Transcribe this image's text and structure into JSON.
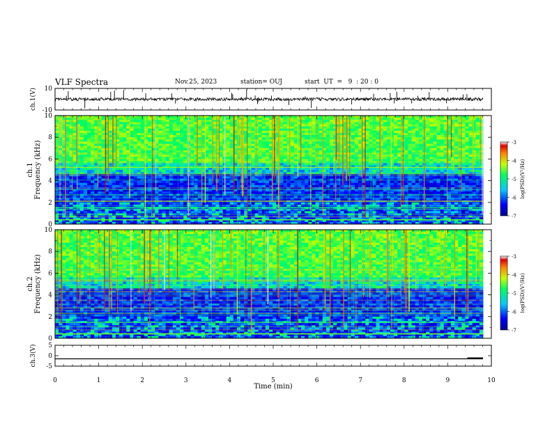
{
  "header": {
    "title": "VLF Spectra",
    "date": "Nov.25, 2023",
    "station": "station= OUJ",
    "start": "start  UT  =   9  : 20 : 0"
  },
  "chart_data": [
    {
      "type": "line",
      "panel": "ch1-waveform",
      "ylabel": "ch.1(V)",
      "ylim": [
        -10,
        10
      ],
      "y_ticks": [
        "10",
        "-10"
      ],
      "x_range": [
        0,
        10
      ],
      "trace_level": 0
    },
    {
      "type": "heatmap",
      "panel": "ch1-spectrogram",
      "ylabel_top": "ch.1",
      "ylabel": "Frequency (kHz)",
      "ylim": [
        0,
        10
      ],
      "y_ticks": [
        "0",
        "2",
        "4",
        "6",
        "8",
        "10"
      ],
      "x_range": [
        0,
        9.85
      ],
      "colorbar": {
        "label": "log(PSD)(V²/Hz)",
        "ticks": [
          "-3",
          "-4",
          "-5",
          "-6",
          "-7"
        ],
        "range": [
          -7,
          -3
        ]
      }
    },
    {
      "type": "heatmap",
      "panel": "ch2-spectrogram",
      "ylabel_top": "ch.2",
      "ylabel": "Frequency (kHz)",
      "ylim": [
        0,
        10
      ],
      "y_ticks": [
        "0",
        "2",
        "4",
        "6",
        "8",
        "10"
      ],
      "x_range": [
        0,
        9.85
      ],
      "colorbar": {
        "label": "log(PSD)(V²/Hz)",
        "ticks": [
          "-3",
          "-4",
          "-5",
          "-6",
          "-7"
        ],
        "range": [
          -7,
          -3
        ]
      }
    },
    {
      "type": "line",
      "panel": "ch3-waveform",
      "ylabel": "ch.3(V)",
      "ylim": [
        -5,
        5
      ],
      "y_ticks": [
        "5",
        "0",
        "-5"
      ],
      "x_range": [
        0,
        10
      ],
      "trace_level": -1.5,
      "xlabel": "Time (min)",
      "x_ticks": [
        "0",
        "1",
        "2",
        "3",
        "4",
        "5",
        "6",
        "7",
        "8",
        "9",
        "10"
      ]
    }
  ]
}
